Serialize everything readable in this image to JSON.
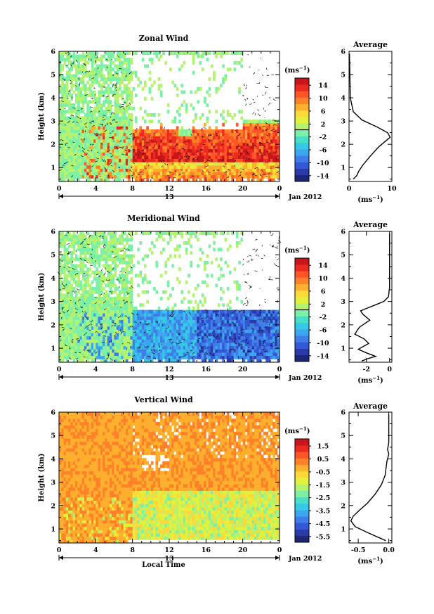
{
  "figure": {
    "date_label": "Jan 2012",
    "day_label": "13",
    "xlabel_bottom": "Local Time",
    "unit": "(ms",
    "unit_exp": "−1",
    "unit_close": ")"
  },
  "chart_data": [
    {
      "type": "heatmap",
      "title": "Zonal Wind",
      "ylabel": "Height (km)",
      "xlabel": "",
      "x_ticks": [
        "0",
        "4",
        "8",
        "12",
        "16",
        "20",
        "0"
      ],
      "xlim": [
        0,
        24
      ],
      "y_ticks": [
        "1",
        "2",
        "3",
        "4",
        "5",
        "6"
      ],
      "ylim": [
        0.4,
        6.0
      ],
      "colorbar": {
        "ticks": [
          "14",
          "10",
          "6",
          "2",
          "-2",
          "-6",
          "-10",
          "-14"
        ],
        "range": [
          -16,
          16
        ],
        "colors": [
          "#1d2673",
          "#2a3aa8",
          "#3558d6",
          "#3f7ee8",
          "#3aa7ee",
          "#36c9e6",
          "#49dfc7",
          "#7cf0a6",
          "#b5f36f",
          "#e3f03c",
          "#ffd83a",
          "#ffaf2e",
          "#ff8128",
          "#ff5527",
          "#ec2a22",
          "#c6161b"
        ],
        "marker": 0
      },
      "field_note": "weak (~ -2..2) background with strong positive (~10..16) westerlies 8–24 LT below 3 km"
    },
    {
      "type": "line",
      "title": "Average",
      "xlim": [
        0,
        10
      ],
      "x_ticks": [
        "0",
        "10"
      ],
      "ylim": [
        0.4,
        6.0
      ],
      "y_ticks": [
        "1",
        "2",
        "3",
        "4",
        "5",
        "6"
      ],
      "xlabel": "(ms−1)",
      "x": [
        0.1,
        0.3,
        1.0,
        3.0,
        6.5,
        9.0,
        9.6,
        7.0,
        5.0,
        3.2,
        2.3,
        1.8,
        1.0
      ],
      "y": [
        5.9,
        4.0,
        3.4,
        3.05,
        2.75,
        2.5,
        2.3,
        1.9,
        1.5,
        1.1,
        0.85,
        0.65,
        0.5
      ]
    },
    {
      "type": "heatmap",
      "title": "Meridional Wind",
      "ylabel": "Height (km)",
      "xlabel": "",
      "x_ticks": [
        "0",
        "4",
        "8",
        "12",
        "16",
        "20",
        "0"
      ],
      "xlim": [
        0,
        24
      ],
      "y_ticks": [
        "1",
        "2",
        "3",
        "4",
        "5",
        "6"
      ],
      "ylim": [
        0.4,
        6.0
      ],
      "colorbar": {
        "ticks": [
          "14",
          "10",
          "6",
          "2",
          "-2",
          "-6",
          "-10",
          "-14"
        ],
        "range": [
          -16,
          16
        ],
        "colors": [
          "#1d2673",
          "#2a3aa8",
          "#3558d6",
          "#3f7ee8",
          "#3aa7ee",
          "#36c9e6",
          "#49dfc7",
          "#7cf0a6",
          "#b5f36f",
          "#e3f03c",
          "#ffd83a",
          "#ffaf2e",
          "#ff8128",
          "#ff5527",
          "#ec2a22",
          "#c6161b"
        ],
        "marker": 0
      },
      "field_note": "weak background with negative (~ -4..-12) southward flow 8–24 LT below 2.5 km"
    },
    {
      "type": "line",
      "title": "Average",
      "xlim": [
        -3.5,
        0.2
      ],
      "x_ticks": [
        "-2",
        "0"
      ],
      "ylim": [
        0.4,
        6.0
      ],
      "y_ticks": [
        "1",
        "2",
        "3",
        "4",
        "5",
        "6"
      ],
      "xlabel": "(ms−1)",
      "x": [
        0.0,
        0.0,
        -0.1,
        -0.5,
        -1.5,
        -2.5,
        -2.3,
        -1.7,
        -2.6,
        -3.0,
        -2.2,
        -1.8,
        -2.7,
        -2.0,
        -1.2,
        -1.9,
        -2.4
      ],
      "y": [
        5.9,
        3.6,
        3.2,
        3.0,
        2.8,
        2.6,
        2.45,
        2.2,
        1.9,
        1.6,
        1.4,
        1.2,
        0.95,
        0.8,
        0.65,
        0.55,
        0.45
      ]
    },
    {
      "type": "heatmap",
      "title": "Vertical Wind",
      "ylabel": "Height (km)",
      "xlabel": "Local Time",
      "x_ticks": [
        "0",
        "4",
        "8",
        "12",
        "16",
        "20",
        "0"
      ],
      "xlim": [
        0,
        24
      ],
      "y_ticks": [
        "1",
        "2",
        "3",
        "4",
        "5",
        "6"
      ],
      "ylim": [
        0.4,
        6.0
      ],
      "colorbar": {
        "ticks": [
          "1.5",
          "0.5",
          "-0.5",
          "-1.5",
          "-2.5",
          "-3.5",
          "-4.5",
          "-5.5"
        ],
        "range": [
          -6.0,
          2.0
        ],
        "colors": [
          "#1d2673",
          "#2a3aa8",
          "#3558d6",
          "#3f7ee8",
          "#3aa7ee",
          "#36c9e6",
          "#49dfc7",
          "#7cf0a6",
          "#b5f36f",
          "#e3f03c",
          "#ffd83a",
          "#ffaf2e",
          "#ff8128",
          "#ff5527",
          "#ec2a22",
          "#c6161b"
        ],
        "marker": null
      },
      "field_note": "mostly ~0 (orange/yellow), weak downward (~ -1..-2) below 2.5 km after 8 LT"
    },
    {
      "type": "line",
      "title": "Average",
      "xlim": [
        -0.65,
        0.05
      ],
      "x_ticks": [
        "-0.5",
        "0.0"
      ],
      "ylim": [
        0.4,
        6.0
      ],
      "y_ticks": [
        "1",
        "2",
        "3",
        "4",
        "5",
        "6"
      ],
      "xlabel": "(ms−1)",
      "x": [
        0.0,
        0.0,
        -0.02,
        0.0,
        -0.03,
        -0.06,
        -0.12,
        -0.22,
        -0.35,
        -0.48,
        -0.58,
        -0.62,
        -0.55,
        -0.35,
        -0.18,
        -0.05
      ],
      "y": [
        5.9,
        4.7,
        4.4,
        4.2,
        3.9,
        3.3,
        2.9,
        2.5,
        2.1,
        1.8,
        1.55,
        1.35,
        1.1,
        0.85,
        0.65,
        0.5
      ]
    }
  ]
}
